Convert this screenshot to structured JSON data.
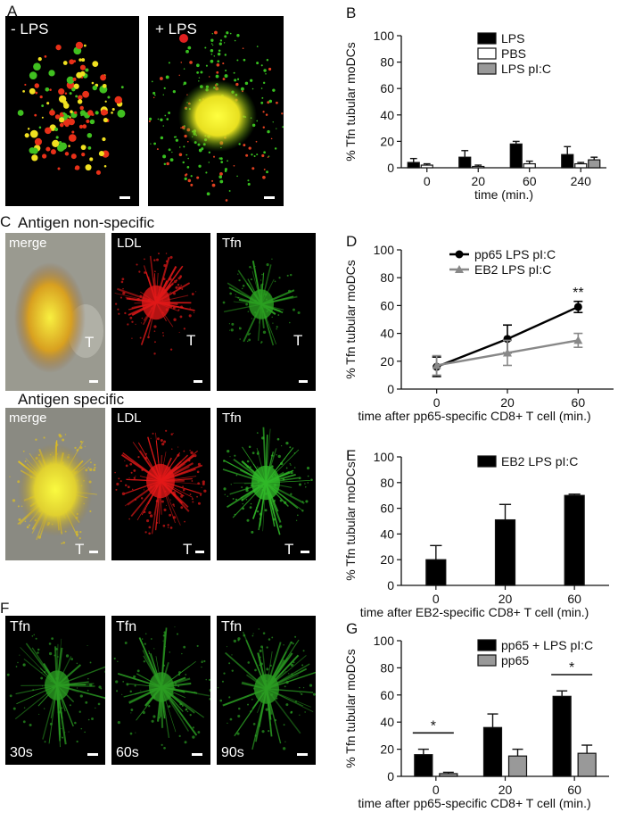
{
  "panels": {
    "A": {
      "letter": "A",
      "images": [
        {
          "label": "- LPS"
        },
        {
          "label": "+ LPS"
        }
      ]
    },
    "C": {
      "letter": "C",
      "row1_title": "Antigen non-specific",
      "row2_title": "Antigen specific",
      "row1": [
        {
          "label": "merge",
          "tag": "T"
        },
        {
          "label": "LDL",
          "tag": "T"
        },
        {
          "label": "Tfn",
          "tag": "T"
        }
      ],
      "row2": [
        {
          "label": "merge",
          "tag": "T"
        },
        {
          "label": "LDL",
          "tag": "T"
        },
        {
          "label": "Tfn",
          "tag": "T"
        }
      ]
    },
    "F": {
      "letter": "F",
      "images": [
        {
          "label": "Tfn",
          "time": "30s"
        },
        {
          "label": "Tfn",
          "time": "60s"
        },
        {
          "label": "Tfn",
          "time": "90s"
        }
      ]
    }
  },
  "chart_data": [
    {
      "id": "B",
      "letter": "B",
      "type": "bar",
      "ylabel": "% Tfn tubular moDCs",
      "xlabel": "time (min.)",
      "ylim": [
        0,
        100
      ],
      "yticks": [
        0,
        20,
        40,
        60,
        80,
        100
      ],
      "categories": [
        "0",
        "20",
        "60",
        "240"
      ],
      "series": [
        {
          "name": "LPS",
          "color": "#000000",
          "values": [
            4,
            8,
            18,
            10
          ],
          "errors": [
            3,
            5,
            2,
            6
          ]
        },
        {
          "name": "PBS",
          "color": "#ffffff",
          "values": [
            2,
            1,
            3,
            3
          ],
          "errors": [
            1,
            1,
            2,
            1
          ]
        },
        {
          "name": "LPS pI:C",
          "color": "#999999",
          "values": [
            null,
            null,
            null,
            6
          ],
          "errors": [
            null,
            null,
            null,
            2
          ]
        }
      ]
    },
    {
      "id": "D",
      "letter": "D",
      "type": "line",
      "ylabel": "% Tfn tubular moDCs",
      "xlabel": "time after pp65-specific CD8+ T cell (min.)",
      "ylim": [
        0,
        100
      ],
      "yticks": [
        0,
        20,
        40,
        60,
        80,
        100
      ],
      "x": [
        "0",
        "20",
        "60"
      ],
      "series": [
        {
          "name": "pp65 LPS pI:C",
          "color": "#000000",
          "marker": "circle",
          "values": [
            16,
            36,
            59
          ],
          "errors": [
            7,
            10,
            4
          ]
        },
        {
          "name": "EB2 LPS pI:C",
          "color": "#888888",
          "marker": "triangle",
          "values": [
            17,
            26,
            35
          ],
          "errors": [
            7,
            9,
            5
          ]
        }
      ],
      "annotations": [
        {
          "text": "**",
          "x": "60",
          "y": 66
        }
      ]
    },
    {
      "id": "E",
      "letter": "E",
      "type": "bar",
      "ylabel": "% Tfn tubular moDCs",
      "xlabel": "time after EB2-specific CD8+ T cell (min.)",
      "ylim": [
        0,
        100
      ],
      "yticks": [
        0,
        20,
        40,
        60,
        80,
        100
      ],
      "categories": [
        "0",
        "20",
        "60"
      ],
      "series": [
        {
          "name": "EB2 LPS pI:C",
          "color": "#000000",
          "values": [
            20,
            51,
            70
          ],
          "errors": [
            11,
            12,
            1
          ]
        }
      ]
    },
    {
      "id": "G",
      "letter": "G",
      "type": "bar",
      "ylabel": "% Tfn tubular moDCs",
      "xlabel": "time after pp65-specific CD8+ T cell (min.)",
      "ylim": [
        0,
        100
      ],
      "yticks": [
        0,
        20,
        40,
        60,
        80,
        100
      ],
      "categories": [
        "0",
        "20",
        "60"
      ],
      "series": [
        {
          "name": "pp65 + LPS pI:C",
          "color": "#000000",
          "values": [
            16,
            36,
            59
          ],
          "errors": [
            4,
            10,
            4
          ]
        },
        {
          "name": "pp65",
          "color": "#999999",
          "values": [
            2,
            15,
            17
          ],
          "errors": [
            1,
            5,
            6
          ]
        }
      ],
      "significance": [
        {
          "text": "*",
          "category": "0"
        },
        {
          "text": "*",
          "category": "60"
        }
      ]
    }
  ]
}
